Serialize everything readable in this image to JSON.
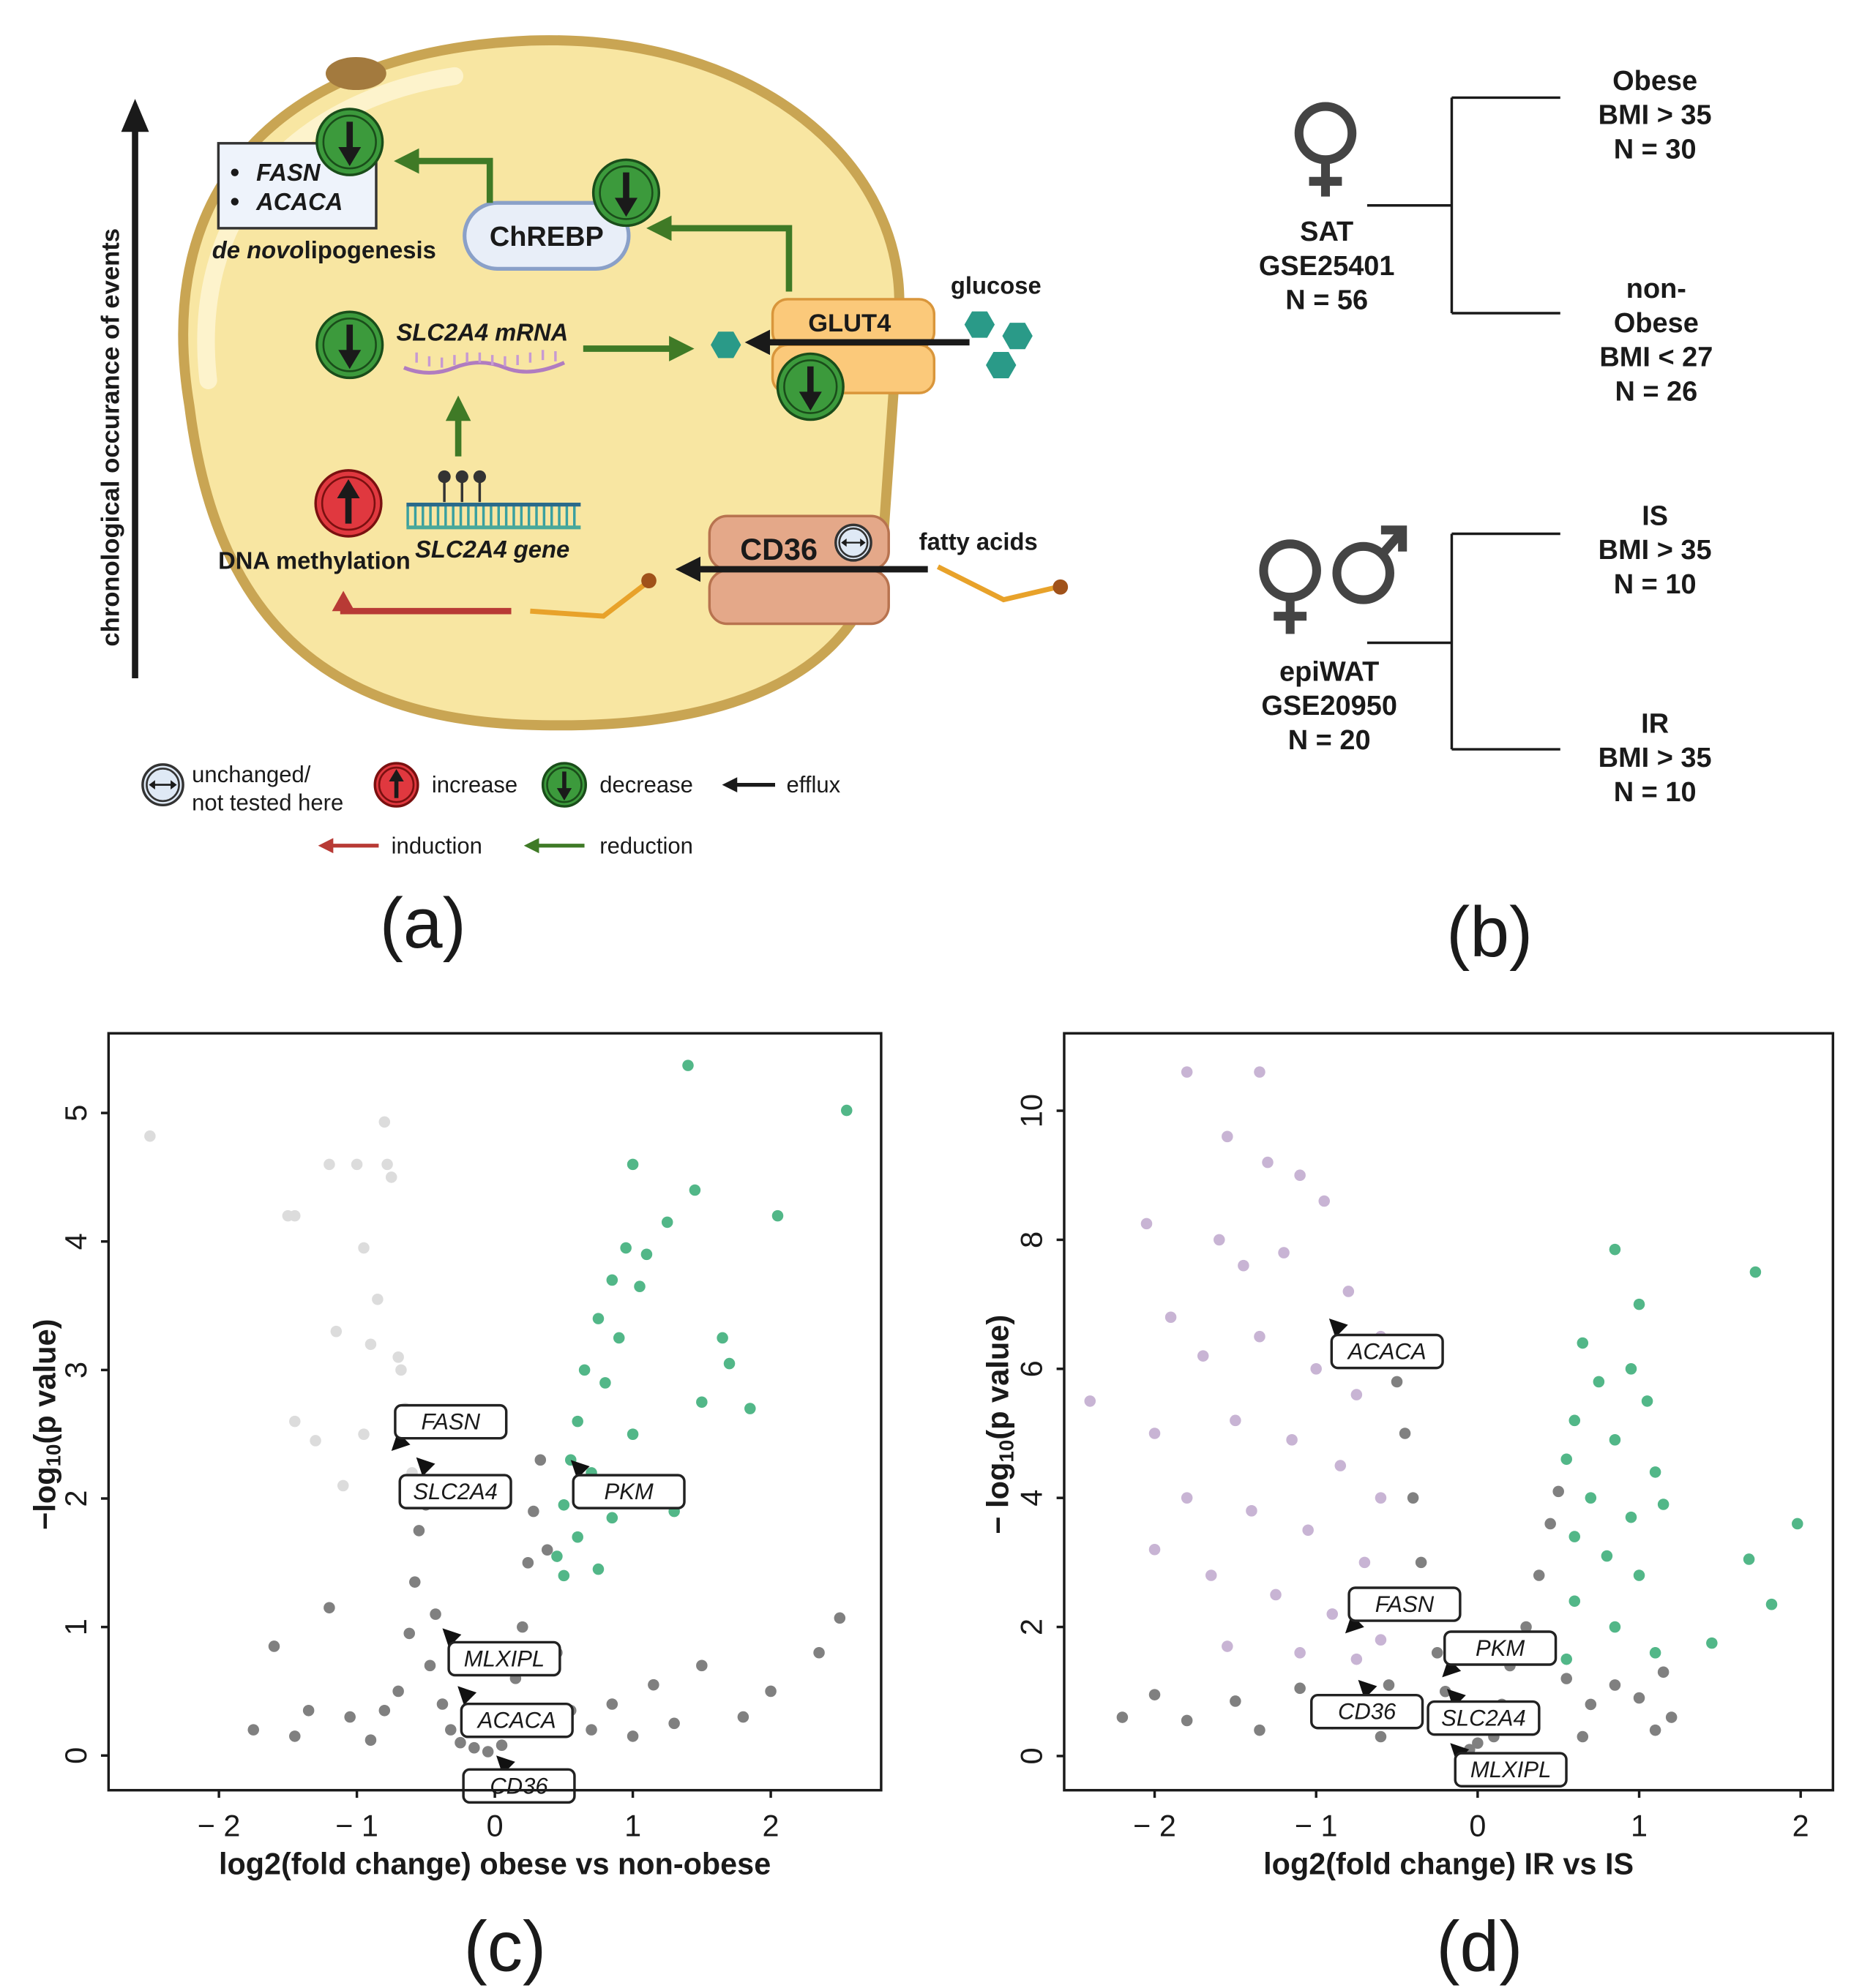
{
  "panel_labels": [
    "(a)",
    "(b)",
    "(c)",
    "(d)"
  ],
  "panel_a": {
    "vertical_axis": "chronological occurance of events",
    "box_genes": [
      "FASN",
      "ACACA"
    ],
    "lipogenesis_prefix": "de novo",
    "lipogenesis": "lipogenesis",
    "chrebp": "ChREBP",
    "glucose": "glucose",
    "glut4": "GLUT4",
    "mrna": "SLC2A4 mRNA",
    "methylation": "DNA methylation",
    "gene": "SLC2A4 gene",
    "cd36": "CD36",
    "fatty_acids": "fatty acids",
    "legend": {
      "unchanged": [
        "unchanged/",
        "not tested here"
      ],
      "increase": "increase",
      "decrease": "decrease",
      "efflux": "efflux",
      "induction": "induction",
      "reduction": "reduction"
    }
  },
  "panel_b": {
    "cohorts": [
      {
        "lines": [
          "SAT",
          "GSE25401",
          "N = 56"
        ],
        "groups": [
          [
            "Obese",
            "BMI > 35",
            "N = 30"
          ],
          [
            "non-",
            "Obese",
            "BMI < 27",
            "N = 26"
          ]
        ]
      },
      {
        "lines": [
          "epiWAT",
          "GSE20950",
          "N = 20"
        ],
        "groups": [
          [
            "IS",
            "BMI > 35",
            "N = 10"
          ],
          [
            "IR",
            "BMI > 35",
            "N = 10"
          ]
        ]
      }
    ]
  },
  "chart_data": [
    {
      "type": "scatter",
      "xlabel": "log2(fold change) obese vs non-obese",
      "ylabel": {
        "main": "−log",
        "sub": "10",
        "rest": "(p value)"
      },
      "xlim": [
        -2.8,
        2.8
      ],
      "ylim": [
        -0.27,
        5.62
      ],
      "xticks": [
        {
          "value": -2,
          "label": "− 2"
        },
        {
          "value": -1,
          "label": "− 1"
        },
        0,
        1,
        2
      ],
      "yticks": [
        0,
        1,
        2,
        3,
        4,
        5
      ],
      "series": [
        {
          "color": "#808080",
          "x": [
            -1.75,
            -1.6,
            -1.45,
            -1.35,
            -1.2,
            -1.05,
            -0.9,
            -0.8,
            -0.7,
            -0.62,
            -0.58,
            -0.55,
            -0.5,
            -0.47,
            -0.43,
            -0.38,
            -0.32,
            -0.25,
            -0.15,
            -0.05,
            0.05,
            0.1,
            0.15,
            0.2,
            0.24,
            0.28,
            0.33,
            0.38,
            0.45,
            0.55,
            0.7,
            0.85,
            1.0,
            1.15,
            1.3,
            1.5,
            1.8,
            2.0,
            2.35,
            2.5
          ],
          "y": [
            0.2,
            0.85,
            0.15,
            0.35,
            1.15,
            0.3,
            0.12,
            0.35,
            0.5,
            0.95,
            1.35,
            1.75,
            1.95,
            0.7,
            1.1,
            0.4,
            0.2,
            0.1,
            0.06,
            0.03,
            0.08,
            0.25,
            0.6,
            1.0,
            1.5,
            1.9,
            2.3,
            1.6,
            0.8,
            0.35,
            0.2,
            0.4,
            0.15,
            0.55,
            0.25,
            0.7,
            0.3,
            0.5,
            0.8,
            1.07
          ]
        },
        {
          "color": "#dcdcdc",
          "x": [
            -2.5,
            -1.5,
            -1.45,
            -1.2,
            -1.0,
            -0.8,
            -0.78,
            -0.75,
            -0.95,
            -0.85,
            -1.15,
            -0.9,
            -0.7,
            -0.68,
            -1.45,
            -0.95,
            -0.65,
            -1.3,
            -0.6,
            -1.1
          ],
          "y": [
            4.82,
            4.2,
            4.2,
            4.6,
            4.6,
            4.93,
            4.6,
            4.5,
            3.95,
            3.55,
            3.3,
            3.2,
            3.1,
            3.0,
            2.6,
            2.5,
            2.7,
            2.45,
            2.2,
            2.1
          ]
        },
        {
          "color": "#52b788",
          "x": [
            1.4,
            2.55,
            1.0,
            1.45,
            2.05,
            1.25,
            0.95,
            1.1,
            0.85,
            1.05,
            0.75,
            0.9,
            1.65,
            1.7,
            0.65,
            0.8,
            1.5,
            1.85,
            0.6,
            1.0,
            0.55,
            0.7,
            1.25,
            0.5,
            0.85,
            0.6,
            0.45,
            1.3,
            0.75,
            0.5
          ],
          "y": [
            5.37,
            5.02,
            4.6,
            4.4,
            4.2,
            4.15,
            3.95,
            3.9,
            3.7,
            3.65,
            3.4,
            3.25,
            3.25,
            3.05,
            3.0,
            2.9,
            2.75,
            2.7,
            2.6,
            2.5,
            2.3,
            2.2,
            2.05,
            1.95,
            1.85,
            1.7,
            1.55,
            1.9,
            1.45,
            1.4
          ]
        }
      ],
      "annotations": [
        {
          "text": "FASN",
          "x": -0.75,
          "y": 2.37
        },
        {
          "text": "SLC2A4",
          "x": -0.57,
          "y": 2.32
        },
        {
          "text": "PKM",
          "x": 0.55,
          "y": 2.3
        },
        {
          "text": "MLXIPL",
          "x": -0.38,
          "y": 0.99
        },
        {
          "text": "ACACA",
          "x": -0.27,
          "y": 0.54
        },
        {
          "text": "CD36",
          "x": 0.01,
          "y": 0.0
        }
      ]
    },
    {
      "type": "scatter",
      "xlabel": "log2(fold change) IR vs IS",
      "ylabel": {
        "main": "− log",
        "sub": "10",
        "rest": "(p value)"
      },
      "xlim": [
        -2.56,
        2.2
      ],
      "ylim": [
        -0.53,
        11.2
      ],
      "xticks": [
        {
          "value": -2,
          "label": "− 2"
        },
        {
          "value": -1,
          "label": "− 1"
        },
        0,
        1,
        2
      ],
      "yticks": [
        0,
        2,
        4,
        6,
        8,
        10
      ],
      "series": [
        {
          "color": "#808080",
          "x": [
            -2.2,
            -2.0,
            -1.8,
            -1.5,
            -1.35,
            -1.1,
            -0.9,
            -0.7,
            -0.55,
            -0.5,
            -0.45,
            -0.4,
            -0.35,
            -0.3,
            -0.25,
            -0.2,
            -0.1,
            0.0,
            0.1,
            0.15,
            0.2,
            0.3,
            0.38,
            0.45,
            0.5,
            0.55,
            0.7,
            0.85,
            1.0,
            1.1,
            1.2,
            0.65,
            -0.05,
            -0.6,
            1.15
          ],
          "y": [
            0.6,
            0.95,
            0.55,
            0.85,
            0.4,
            1.05,
            0.5,
            0.8,
            1.1,
            5.8,
            5.0,
            4.0,
            3.0,
            2.2,
            1.6,
            1.0,
            0.5,
            0.2,
            0.3,
            0.8,
            1.4,
            2.0,
            2.8,
            3.6,
            4.1,
            1.2,
            0.8,
            1.1,
            0.9,
            0.4,
            0.6,
            0.3,
            0.1,
            0.3,
            1.3
          ]
        },
        {
          "color": "#c8b4d4",
          "x": [
            -1.8,
            -1.35,
            -2.4,
            -2.05,
            -1.55,
            -1.3,
            -1.1,
            -0.95,
            -1.6,
            -1.45,
            -1.2,
            -0.8,
            -0.6,
            -1.9,
            -1.7,
            -1.35,
            -1.0,
            -0.75,
            -2.0,
            -1.5,
            -1.15,
            -0.85,
            -0.6,
            -1.8,
            -1.4,
            -1.05,
            -0.7,
            -2.0,
            -1.65,
            -1.25,
            -0.9,
            -0.6,
            -1.55,
            -1.1,
            -0.75
          ],
          "y": [
            10.6,
            10.6,
            5.5,
            8.25,
            9.6,
            9.2,
            9.0,
            8.6,
            8.0,
            7.6,
            7.8,
            7.2,
            6.5,
            6.8,
            6.2,
            6.5,
            6.0,
            5.6,
            5.0,
            5.2,
            4.9,
            4.5,
            4.0,
            4.0,
            3.8,
            3.5,
            3.0,
            3.2,
            2.8,
            2.5,
            2.2,
            1.8,
            1.7,
            1.6,
            1.5
          ]
        },
        {
          "color": "#52b788",
          "x": [
            0.85,
            1.72,
            1.0,
            0.65,
            0.95,
            0.75,
            1.05,
            0.6,
            0.85,
            1.1,
            0.55,
            0.7,
            0.95,
            1.15,
            0.6,
            0.8,
            1.0,
            1.98,
            1.68,
            1.82,
            1.45,
            0.6,
            0.85,
            1.1,
            0.55
          ],
          "y": [
            7.85,
            7.5,
            7.0,
            6.4,
            6.0,
            5.8,
            5.5,
            5.2,
            4.9,
            4.4,
            4.6,
            4.0,
            3.7,
            3.9,
            3.4,
            3.1,
            2.8,
            3.6,
            3.05,
            2.35,
            1.75,
            2.4,
            2.0,
            1.6,
            1.5
          ]
        }
      ],
      "annotations": [
        {
          "text": "ACACA",
          "x": -0.92,
          "y": 6.78
        },
        {
          "text": "FASN",
          "x": -0.82,
          "y": 1.9
        },
        {
          "text": "PKM",
          "x": -0.22,
          "y": 1.22
        },
        {
          "text": "CD36",
          "x": -0.74,
          "y": 1.18
        },
        {
          "text": "SLC2A4",
          "x": -0.19,
          "y": 1.04
        },
        {
          "text": "MLXIPL",
          "x": -0.17,
          "y": 0.2
        }
      ]
    }
  ]
}
